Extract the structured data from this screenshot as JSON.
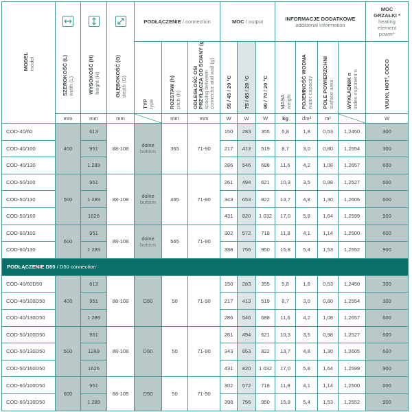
{
  "header": {
    "model": {
      "pl": "MODEL",
      "en": "model"
    },
    "width": {
      "pl": "SZEROKOŚĆ (L)",
      "en": "width (L)",
      "icon": "horizontal-arrows-icon"
    },
    "height": {
      "pl": "WYSOKOŚĆ (H)",
      "en": "height (H)",
      "icon": "vertical-arrows-icon"
    },
    "depth": {
      "pl": "GŁĘBOKOŚĆ (G)",
      "en": "depth (G)",
      "icon": "diagonal-arrows-icon"
    },
    "connection": {
      "pl": "PODŁĄCZENIE",
      "en": "/ connection"
    },
    "type": {
      "pl": "TYP",
      "en": "type"
    },
    "pitch": {
      "pl": "ROZSTAW (h)",
      "en": "pitch (h)"
    },
    "spacing": {
      "pl1": "ODLEGŁOŚĆ OSI",
      "pl2": "PRZYŁĄCZA OD ŚCIANY (g)",
      "en1": "spacing between",
      "en2": "connector and wall (g)"
    },
    "output": {
      "pl": "MOC",
      "en": "/ output"
    },
    "p55": "55 / 45 / 20 °C",
    "p75": "75 / 65 / 20 °C",
    "p90": "90 / 70 / 20 °C",
    "additional": {
      "pl": "INFORMACJE DODATKOWE",
      "en": "additional information"
    },
    "mass": {
      "pl": "MASA",
      "en": "weight"
    },
    "water": {
      "pl": "POJEMNOŚĆ WODNA",
      "en": "water capacity"
    },
    "surface": {
      "pl": "POLE POWIERZCHNI",
      "en": "surface area"
    },
    "exponent": {
      "pl": "WYKŁADNIK n",
      "en": "index exponent n"
    },
    "heater": {
      "pl1": "MOC",
      "pl2": "GRZAŁKI *",
      "en1": "heating",
      "en2": "element",
      "en3": "power*"
    },
    "heater_models": "YUUKI, HOT², COCO"
  },
  "units": {
    "width": "mm",
    "height": "mm",
    "depth": "mm",
    "pitch": "mm",
    "spacing": "mm",
    "p55": "W",
    "p75": "W",
    "p90": "W",
    "mass": "kg",
    "water": "dm³",
    "surface": "m²",
    "heater": "W"
  },
  "colors": {
    "border": "#3f9894",
    "shade": "#b9c9ca",
    "light_shade": "#dbe5e7",
    "band": "#0a6e69"
  },
  "sections": [
    {
      "title_bold": "",
      "title_rest": "",
      "groups": [
        {
          "width": "400",
          "depth": "88-108",
          "type_pl": "dolne",
          "type_en": "bottom",
          "pitch": "365",
          "spacing": "71-90",
          "rows": [
            {
              "model": "COD-40/60",
              "height": "613",
              "p55": "150",
              "p75": "283",
              "p90": "355",
              "mass": "5,8",
              "water": "1,8",
              "surface": "0,53",
              "exponent": "1,2450",
              "heater": "300"
            },
            {
              "model": "COD-40/100",
              "height": "951",
              "p55": "217",
              "p75": "413",
              "p90": "519",
              "mass": "8,7",
              "water": "3,0",
              "surface": "0,80",
              "exponent": "1,2554",
              "heater": "300"
            },
            {
              "model": "COD-40/130",
              "height": "1 289",
              "p55": "286",
              "p75": "546",
              "p90": "688",
              "mass": "11,6",
              "water": "4,2",
              "surface": "1,08",
              "exponent": "1,2657",
              "heater": "600"
            }
          ]
        },
        {
          "width": "500",
          "depth": "88-108",
          "type_pl": "dolne",
          "type_en": "bottom",
          "pitch": "465",
          "spacing": "71-90",
          "rows": [
            {
              "model": "COD-50/100",
              "height": "951",
              "p55": "261",
              "p75": "494",
              "p90": "621",
              "mass": "10,3",
              "water": "3,5",
              "surface": "0,98",
              "exponent": "1,2527",
              "heater": "600"
            },
            {
              "model": "COD-50/130",
              "height": "1 289",
              "p55": "343",
              "p75": "653",
              "p90": "822",
              "mass": "13,7",
              "water": "4,8",
              "surface": "1,30",
              "exponent": "1,2605",
              "heater": "600"
            },
            {
              "model": "COD-50/160",
              "height": "1626",
              "p55": "431",
              "p75": "820",
              "p90": "1 032",
              "mass": "17,0",
              "water": "5,8",
              "surface": "1,64",
              "exponent": "1,2599",
              "heater": "900"
            }
          ]
        },
        {
          "width": "600",
          "depth": "88-108",
          "type_pl": "dolne",
          "type_en": "bottom",
          "pitch": "565",
          "spacing": "71-90",
          "rows": [
            {
              "model": "COD-60/100",
              "height": "951",
              "p55": "302",
              "p75": "572",
              "p90": "718",
              "mass": "11,8",
              "water": "4,1",
              "surface": "1,14",
              "exponent": "1,2500",
              "heater": "600"
            },
            {
              "model": "COD-60/130",
              "height": "1 289",
              "p55": "398",
              "p75": "756",
              "p90": "950",
              "mass": "15,8",
              "water": "5,4",
              "surface": "1,53",
              "exponent": "1,2552",
              "heater": "900"
            }
          ]
        }
      ]
    },
    {
      "title_bold": "PODŁĄCZENIE D50",
      "title_rest": " / D50 connection",
      "groups": [
        {
          "width": "400",
          "depth": "88-108",
          "type_pl": "D50",
          "type_en": "",
          "pitch": "50",
          "spacing": "71-90",
          "rows": [
            {
              "model": "COD-40/60D50",
              "height": "613",
              "p55": "150",
              "p75": "283",
              "p90": "355",
              "mass": "5,8",
              "water": "1,8",
              "surface": "0,53",
              "exponent": "1,2450",
              "heater": "300"
            },
            {
              "model": "COD-40/100D50",
              "height": "951",
              "p55": "217",
              "p75": "413",
              "p90": "519",
              "mass": "8,7",
              "water": "3,0",
              "surface": "0,80",
              "exponent": "1,2554",
              "heater": "300"
            },
            {
              "model": "COD-40/130D50",
              "height": "1 289",
              "p55": "286",
              "p75": "546",
              "p90": "688",
              "mass": "11,6",
              "water": "4,2",
              "surface": "1,08",
              "exponent": "1,2657",
              "heater": "600"
            }
          ]
        },
        {
          "width": "500",
          "depth": "88-108",
          "type_pl": "D50",
          "type_en": "",
          "pitch": "50",
          "spacing": "71-90",
          "rows": [
            {
              "model": "COD-50/100D50",
              "height": "951",
              "p55": "261",
              "p75": "494",
              "p90": "621",
              "mass": "10,3",
              "water": "3,5",
              "surface": "0,98",
              "exponent": "1,2527",
              "heater": "600"
            },
            {
              "model": "COD-50/130D50",
              "height": "1289",
              "p55": "343",
              "p75": "653",
              "p90": "822",
              "mass": "13,7",
              "water": "4,8",
              "surface": "1,30",
              "exponent": "1,2605",
              "heater": "600"
            },
            {
              "model": "COD-50/160D50",
              "height": "1626",
              "p55": "431",
              "p75": "820",
              "p90": "1 032",
              "mass": "17,0",
              "water": "5,8",
              "surface": "1,64",
              "exponent": "1,2599",
              "heater": "900"
            }
          ]
        },
        {
          "width": "600",
          "depth": "88-108",
          "type_pl": "D50",
          "type_en": "",
          "pitch": "50",
          "spacing": "71-90",
          "rows": [
            {
              "model": "COD-60/100D50",
              "height": "951",
              "p55": "302",
              "p75": "572",
              "p90": "718",
              "mass": "11,8",
              "water": "4,1",
              "surface": "1,14",
              "exponent": "1,2500",
              "heater": "600"
            },
            {
              "model": "COD-60/130D50",
              "height": "1 289",
              "p55": "398",
              "p75": "756",
              "p90": "950",
              "mass": "15,8",
              "water": "5,4",
              "surface": "1,53",
              "exponent": "1,2552",
              "heater": "900"
            }
          ]
        }
      ]
    }
  ]
}
